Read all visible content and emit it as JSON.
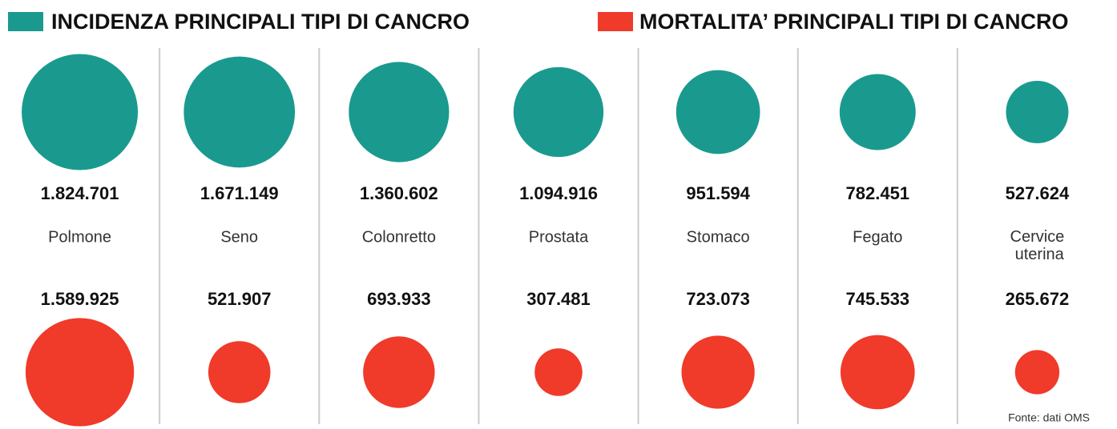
{
  "chart_data": {
    "type": "bubble",
    "categories": [
      "Polmone",
      "Seno",
      "Colonretto",
      "Prostata",
      "Stomaco",
      "Fegato",
      "Cervice uterina"
    ],
    "series": [
      {
        "name": "INCIDENZA PRINCIPALI TIPI DI CANCRO",
        "color": "#1a9a8f",
        "values": [
          1824701,
          1671149,
          1360602,
          1094916,
          951594,
          782451,
          527624
        ],
        "value_labels": [
          "1.824.701",
          "1.671.149",
          "1.360.602",
          "1.094.916",
          "951.594",
          "782.451",
          "527.624"
        ]
      },
      {
        "name": "MORTALITA’ PRINCIPALI TIPI DI CANCRO",
        "color": "#f03a2a",
        "values": [
          1589925,
          521907,
          693933,
          307481,
          723073,
          745533,
          265672
        ],
        "value_labels": [
          "1.589.925",
          "521.907",
          "693.933",
          "307.481",
          "723.073",
          "745.533",
          "265.672"
        ]
      }
    ],
    "source": "Fonte: dati OMS"
  }
}
